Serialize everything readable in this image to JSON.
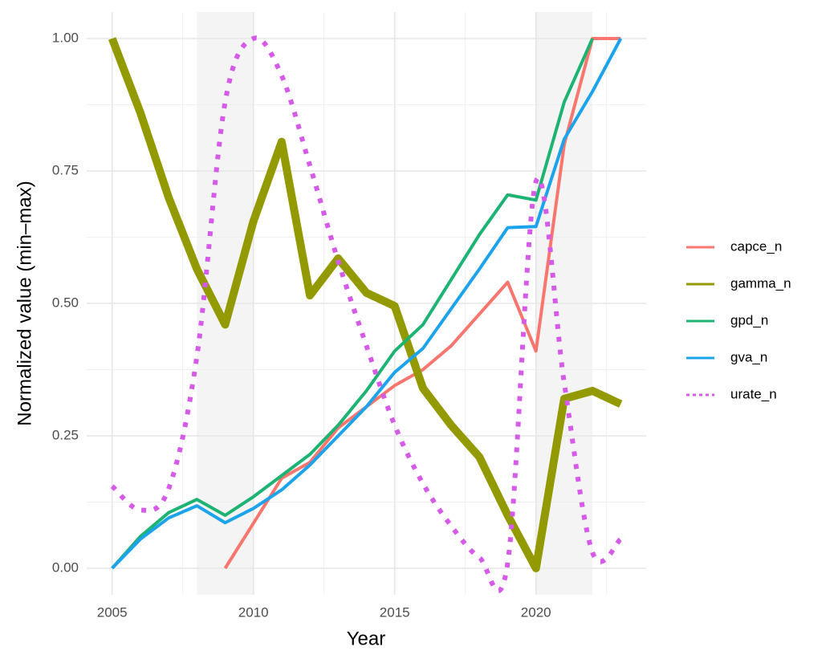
{
  "chart_data": {
    "type": "line",
    "x_label": "Year",
    "y_label": "Normalized value (min–max)",
    "x": [
      2005,
      2006,
      2007,
      2008,
      2009,
      2010,
      2011,
      2012,
      2013,
      2014,
      2015,
      2016,
      2017,
      2018,
      2019,
      2020,
      2021,
      2022,
      2023
    ],
    "series": [
      {
        "name": "capce_n",
        "color": "#F8766D",
        "linewidth": 4,
        "dash": "solid",
        "values": [
          null,
          null,
          null,
          null,
          0.0,
          0.085,
          0.17,
          0.2,
          0.265,
          0.305,
          0.345,
          0.375,
          0.42,
          0.48,
          0.54,
          0.41,
          0.8,
          1.0,
          1.0
        ]
      },
      {
        "name": "gamma_n",
        "color": "#939A00",
        "linewidth": 10,
        "dash": "solid",
        "values": [
          1.0,
          0.86,
          0.7,
          0.565,
          0.46,
          0.655,
          0.805,
          0.515,
          0.585,
          0.52,
          0.495,
          0.34,
          0.27,
          0.21,
          0.1,
          0.0,
          0.32,
          0.335,
          0.31
        ]
      },
      {
        "name": "gpd_n",
        "color": "#1DB373",
        "linewidth": 4,
        "dash": "solid",
        "values": [
          0.0,
          0.06,
          0.105,
          0.13,
          0.1,
          0.135,
          0.175,
          0.215,
          0.27,
          0.335,
          0.41,
          0.46,
          0.545,
          0.63,
          0.705,
          0.695,
          0.88,
          1.0,
          null
        ]
      },
      {
        "name": "gva_n",
        "color": "#1CA3EC",
        "linewidth": 4,
        "dash": "solid",
        "values": [
          0.0,
          0.055,
          0.095,
          0.118,
          0.086,
          0.113,
          0.148,
          0.195,
          0.25,
          0.305,
          0.37,
          0.415,
          0.49,
          0.565,
          0.643,
          0.645,
          0.81,
          0.9,
          1.0
        ]
      },
      {
        "name": "urate_n",
        "color": "#D65AE8",
        "linewidth": 6,
        "dash": "dotted",
        "values": [
          0.155,
          0.11,
          0.15,
          0.4,
          0.88,
          1.0,
          0.93,
          0.76,
          0.58,
          0.42,
          0.27,
          0.16,
          0.08,
          0.02,
          0.01,
          0.73,
          0.35,
          0.03,
          0.055
        ]
      }
    ],
    "shaded": [
      [
        2008,
        2010
      ],
      [
        2020,
        2022
      ]
    ],
    "xlim": [
      2004.1,
      2023.9
    ],
    "ylim": [
      -0.05,
      1.05
    ],
    "xticks": [
      2005,
      2010,
      2015,
      2020
    ],
    "yticks": [
      {
        "value": 0,
        "label": "0.00"
      },
      {
        "value": 0.25,
        "label": "0.25"
      },
      {
        "value": 0.5,
        "label": "0.50"
      },
      {
        "value": 0.75,
        "label": "0.75"
      },
      {
        "value": 1,
        "label": "1.00"
      }
    ],
    "grid": true,
    "minor_grid": true,
    "legend": "right"
  }
}
